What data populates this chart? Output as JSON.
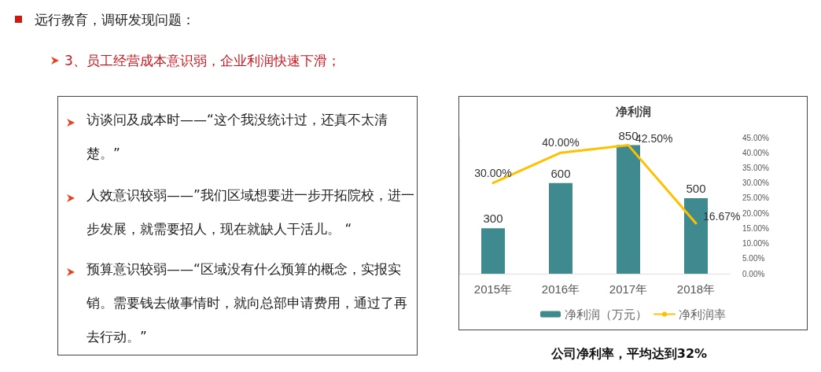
{
  "chart_data": {
    "type": "bar",
    "title": "净利润",
    "categories": [
      "2015年",
      "2016年",
      "2017年",
      "2018年"
    ],
    "series": [
      {
        "name": "净利润（万元）",
        "color": "#3e8a8e",
        "values": [
          300,
          600,
          850,
          500
        ],
        "value_labels": [
          "300",
          "600",
          "850",
          "500"
        ]
      },
      {
        "name": "净利润率",
        "type": "line",
        "axis": "y2",
        "color": "#ffc000",
        "values": [
          30,
          40,
          42.5,
          16.67
        ],
        "value_labels": [
          "30.00%",
          "40.00%",
          "42.50%",
          "16.67%"
        ]
      }
    ],
    "ylim": [
      0,
      900
    ],
    "y2lim": [
      0,
      45
    ],
    "y2ticks": [
      {
        "value": 0,
        "label": "0.00%"
      },
      {
        "value": 5,
        "label": "5.00%"
      },
      {
        "value": 10,
        "label": "10.00%"
      },
      {
        "value": 15,
        "label": "15.00%"
      },
      {
        "value": 20,
        "label": "20.00%"
      },
      {
        "value": 25,
        "label": "25.00%"
      },
      {
        "value": 30,
        "label": "30.00%"
      },
      {
        "value": 35,
        "label": "35.00%"
      },
      {
        "value": 40,
        "label": "40.00%"
      },
      {
        "value": 45,
        "label": "45.00%"
      }
    ],
    "grid": false,
    "legend": "bottom",
    "marker": "none",
    "line_style": "solid",
    "annotations": [
      "远行教育，调研发现问题：",
      "3、员工经营成本意识弱，企业利润快速下滑；",
      "访谈问及成本时——“这个我没统计过，还真不太清楚。”",
      "人效意识较弱——”我们区域想要进一步开拓院校，进一步发展，就需要招人，现在就缺人干活儿。 “",
      "预算意识较弱——“区域没有什么预算的概念，实报实销。需要钱去做事情时，就向总部申请费用，通过了再去行动。”",
      "公司净利率，平均达到32%"
    ]
  }
}
